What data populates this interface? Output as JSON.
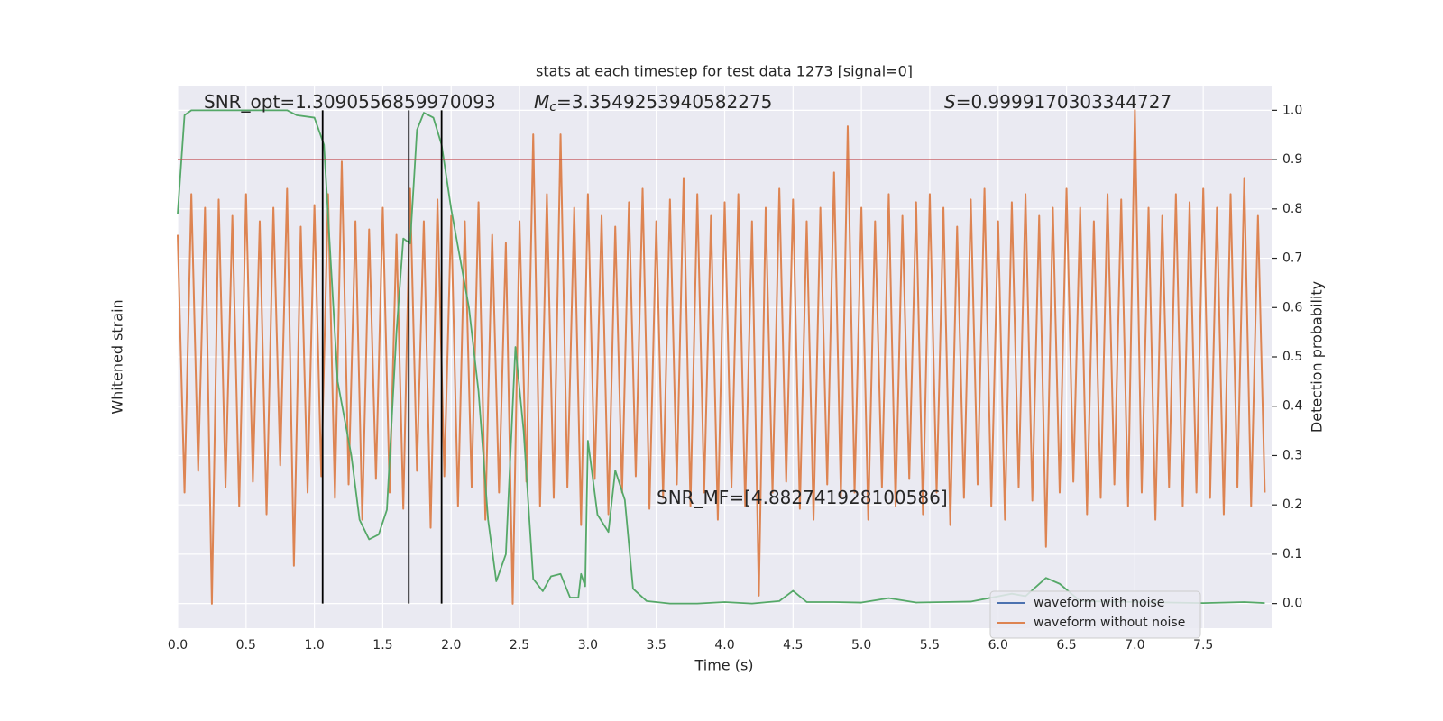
{
  "chart_data": {
    "type": "line",
    "title": "stats at each timestep for test data 1273 [signal=0]",
    "xlabel": "Time (s)",
    "ylabel": "Whitened strain",
    "y2label": "Detection probability",
    "annotations": [
      {
        "text": "SNR_opt=1.3090556859970093"
      },
      {
        "symbol": "M",
        "subscript": "c",
        "text": "=3.3549253940582275"
      },
      {
        "symbol": "S",
        "text": "=0.9999170303344727"
      },
      {
        "text": "SNR_MF=[4.882741928100586]"
      }
    ],
    "xlim": [
      0,
      8
    ],
    "xticks": [
      {
        "value": 0,
        "label": "0.0"
      },
      0.5,
      {
        "value": 1,
        "label": "1.0"
      },
      1.5,
      {
        "value": 2,
        "label": "2.0"
      },
      2.5,
      {
        "value": 3,
        "label": "3.0"
      },
      3.5,
      {
        "value": 4,
        "label": "4.0"
      },
      4.5,
      {
        "value": 5,
        "label": "5.0"
      },
      5.5,
      {
        "value": 6,
        "label": "6.0"
      },
      6.5,
      {
        "value": 7,
        "label": "7.0"
      },
      7.5
    ],
    "ylim": [
      -1,
      1
    ],
    "y2lim": [
      -0.05,
      1.05
    ],
    "y2ticks": [
      {
        "value": 0,
        "label": "0.0"
      },
      0.1,
      0.2,
      0.3,
      0.4,
      0.5,
      0.6,
      0.7,
      0.8,
      0.9,
      {
        "value": 1,
        "label": "1.0"
      }
    ],
    "grid": true,
    "legend": "lower right",
    "series": [
      {
        "name": "waveform with noise",
        "color": "#4c72b0"
      },
      {
        "name": "waveform without noise",
        "color": "#dd8452",
        "x": [
          0,
          0.05,
          0.1,
          0.15,
          0.2,
          0.25,
          0.3,
          0.35,
          0.4,
          0.45,
          0.5,
          0.55,
          0.6,
          0.65,
          0.7,
          0.75,
          0.8,
          0.85,
          0.9,
          0.95,
          1,
          1.05,
          1.1,
          1.15,
          1.2,
          1.25,
          1.3,
          1.35,
          1.4,
          1.45,
          1.5,
          1.55,
          1.6,
          1.65,
          1.7,
          1.75,
          1.8,
          1.85,
          1.9,
          1.95,
          2,
          2.05,
          2.1,
          2.15,
          2.2,
          2.25,
          2.3,
          2.35,
          2.4,
          2.45,
          2.5,
          2.55,
          2.6,
          2.65,
          2.7,
          2.75,
          2.8,
          2.85,
          2.9,
          2.95,
          3,
          3.05,
          3.1,
          3.15,
          3.2,
          3.25,
          3.3,
          3.35,
          3.4,
          3.45,
          3.5,
          3.55,
          3.6,
          3.65,
          3.7,
          3.75,
          3.8,
          3.85,
          3.9,
          3.95,
          4,
          4.05,
          4.1,
          4.15,
          4.2,
          4.25,
          4.3,
          4.35,
          4.4,
          4.45,
          4.5,
          4.55,
          4.6,
          4.65,
          4.7,
          4.75,
          4.8,
          4.85,
          4.9,
          4.95,
          5,
          5.05,
          5.1,
          5.15,
          5.2,
          5.25,
          5.3,
          5.35,
          5.4,
          5.45,
          5.5,
          5.55,
          5.6,
          5.65,
          5.7,
          5.75,
          5.8,
          5.85,
          5.9,
          5.95,
          6,
          6.05,
          6.1,
          6.15,
          6.2,
          6.25,
          6.3,
          6.35,
          6.4,
          6.45,
          6.5,
          6.55,
          6.6,
          6.65,
          6.7,
          6.75,
          6.8,
          6.85,
          6.9,
          6.95,
          7,
          7.05,
          7.1,
          7.15,
          7.2,
          7.25,
          7.3,
          7.35,
          7.4,
          7.45,
          7.5,
          7.55,
          7.6,
          7.65,
          7.7,
          7.75,
          7.8,
          7.85,
          7.9,
          7.95
        ],
        "values": [
          0.45,
          -0.5,
          0.6,
          -0.42,
          0.55,
          -0.91,
          0.58,
          -0.48,
          0.52,
          -0.55,
          0.6,
          -0.46,
          0.5,
          -0.58,
          0.55,
          -0.4,
          0.62,
          -0.77,
          0.48,
          -0.5,
          0.56,
          -0.44,
          0.6,
          -0.52,
          0.72,
          -0.47,
          0.5,
          -0.6,
          0.47,
          -0.45,
          0.55,
          -0.5,
          0.45,
          -0.56,
          0.62,
          -0.42,
          0.5,
          -0.63,
          0.58,
          -0.44,
          0.52,
          -0.55,
          0.5,
          -0.48,
          0.57,
          -0.6,
          0.45,
          -0.5,
          0.42,
          -0.91,
          0.5,
          -0.46,
          0.82,
          -0.55,
          0.6,
          -0.52,
          0.82,
          -0.48,
          0.55,
          -0.62,
          0.6,
          -0.45,
          0.52,
          -0.58,
          0.48,
          -0.5,
          0.57,
          -0.44,
          0.62,
          -0.56,
          0.5,
          -0.52,
          0.58,
          -0.47,
          0.66,
          -0.55,
          0.6,
          -0.5,
          0.52,
          -0.6,
          0.57,
          -0.48,
          0.6,
          -0.55,
          0.5,
          -0.88,
          0.55,
          -0.5,
          0.62,
          -0.46,
          0.58,
          -0.56,
          0.5,
          -0.6,
          0.55,
          -0.47,
          0.68,
          -0.52,
          0.85,
          -0.5,
          0.55,
          -0.6,
          0.5,
          -0.48,
          0.6,
          -0.55,
          0.52,
          -0.45,
          0.57,
          -0.58,
          0.6,
          -0.5,
          0.55,
          -0.62,
          0.48,
          -0.52,
          0.58,
          -0.47,
          0.62,
          -0.55,
          0.5,
          -0.6,
          0.57,
          -0.48,
          0.6,
          -0.53,
          0.52,
          -0.7,
          0.55,
          -0.5,
          0.62,
          -0.46,
          0.55,
          -0.58,
          0.5,
          -0.52,
          0.6,
          -0.47,
          0.58,
          -0.55,
          0.91,
          -0.5,
          0.55,
          -0.6,
          0.52,
          -0.48,
          0.6,
          -0.55,
          0.57,
          -0.5,
          0.62,
          -0.52,
          0.55,
          -0.58,
          0.6,
          -0.48,
          0.66,
          -0.55,
          0.52,
          -0.5
        ]
      },
      {
        "color": "#55a868",
        "axis": "y2",
        "x": [
          0,
          0.05,
          0.1,
          0.2,
          0.4,
          0.6,
          0.8,
          0.87,
          1,
          1.07,
          1.17,
          1.27,
          1.33,
          1.4,
          1.47,
          1.53,
          1.6,
          1.65,
          1.7,
          1.75,
          1.8,
          1.87,
          1.93,
          2,
          2.13,
          2.2,
          2.27,
          2.33,
          2.4,
          2.47,
          2.53,
          2.6,
          2.67,
          2.73,
          2.8,
          2.87,
          2.93,
          2.95,
          2.98,
          3,
          3.07,
          3.15,
          3.2,
          3.27,
          3.33,
          3.43,
          3.6,
          3.8,
          4,
          4.2,
          4.4,
          4.5,
          4.6,
          4.8,
          5,
          5.2,
          5.4,
          5.6,
          5.8,
          6.1,
          6.2,
          6.35,
          6.45,
          6.6,
          7,
          7.5,
          7.8,
          7.95
        ],
        "values": [
          0.79,
          0.99,
          1.0,
          1.0,
          1.0,
          1.0,
          1.0,
          0.99,
          0.985,
          0.93,
          0.45,
          0.3,
          0.17,
          0.13,
          0.14,
          0.19,
          0.55,
          0.74,
          0.73,
          0.96,
          0.995,
          0.985,
          0.93,
          0.8,
          0.6,
          0.43,
          0.17,
          0.045,
          0.1,
          0.52,
          0.35,
          0.05,
          0.025,
          0.055,
          0.06,
          0.012,
          0.012,
          0.06,
          0.035,
          0.33,
          0.18,
          0.145,
          0.27,
          0.21,
          0.03,
          0.005,
          0.0,
          0.0,
          0.003,
          0.0,
          0.005,
          0.026,
          0.003,
          0.003,
          0.002,
          0.011,
          0.002,
          0.003,
          0.004,
          0.02,
          0.015,
          0.052,
          0.04,
          0.005,
          0.003,
          0.001,
          0.003,
          0.001
        ]
      }
    ],
    "vlines": {
      "x": [
        1.06,
        1.69,
        1.93
      ],
      "color": "#000000"
    },
    "hline": {
      "y": 0.9,
      "color": "#c44e52"
    }
  }
}
